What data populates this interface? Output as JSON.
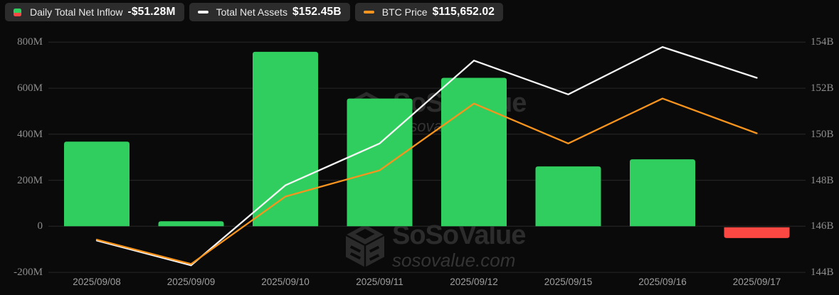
{
  "page": {
    "background": "#0a0a0a"
  },
  "legend": {
    "items": [
      {
        "name": "Daily Total Net Inflow",
        "value": "-$51.28M",
        "icon": "split-green-red-square",
        "icon_colors": [
          "#2fce5e",
          "#fb4843"
        ]
      },
      {
        "name": "Total Net Assets",
        "value": "$152.45B",
        "icon": "white-dash",
        "icon_colors": [
          "#f5f5f5"
        ]
      },
      {
        "name": "BTC Price",
        "value": "$115,652.02",
        "icon": "orange-dash",
        "icon_colors": [
          "#f7941e"
        ]
      }
    ]
  },
  "watermarks": {
    "center": {
      "brand": "SoSoValue",
      "site": "sosovalue.com"
    },
    "bottom": {
      "brand": "SoSoValue",
      "site": "sosovalue.com"
    }
  },
  "chart_data": {
    "type": "combo: bar + 2 lines",
    "categories": [
      "2025/09/08",
      "2025/09/09",
      "2025/09/10",
      "2025/09/11",
      "2025/09/12",
      "2025/09/15",
      "2025/09/16",
      "2025/09/17"
    ],
    "series": [
      {
        "name": "Daily Total Net Inflow",
        "type": "bar",
        "axis": "left",
        "unit": "USD millions",
        "values": [
          368,
          22,
          758,
          555,
          645,
          260,
          291,
          -51.28
        ],
        "positive_color": "#2fce5e",
        "negative_color": "#fb4843"
      },
      {
        "name": "Total Net Assets",
        "type": "line",
        "axis": "right",
        "unit": "USD billions",
        "values": [
          145.38,
          144.3,
          147.78,
          149.6,
          153.2,
          151.73,
          153.79,
          152.45
        ],
        "color": "#f5f5f5"
      },
      {
        "name": "BTC Price",
        "type": "line",
        "axis": "hidden (values given as right-axis equivalents read from pixels)",
        "latest_value_usd": "$115,652.02",
        "values": [
          145.42,
          144.36,
          147.29,
          148.43,
          151.33,
          149.6,
          151.55,
          150.04
        ],
        "color": "#f7941e"
      }
    ],
    "left_axis": {
      "tick_labels": [
        "800M",
        "600M",
        "400M",
        "200M",
        "0",
        "-200M"
      ],
      "tick_values": [
        800,
        600,
        400,
        200,
        0,
        -200
      ],
      "min": -200,
      "max": 800
    },
    "right_axis": {
      "tick_labels": [
        "154B",
        "152B",
        "150B",
        "148B",
        "146B",
        "144B"
      ],
      "tick_values": [
        154,
        152,
        150,
        148,
        146,
        144
      ],
      "min": 144,
      "max": 154
    },
    "grid": true,
    "grid_color": "#282828",
    "legend_position": "top-left"
  }
}
